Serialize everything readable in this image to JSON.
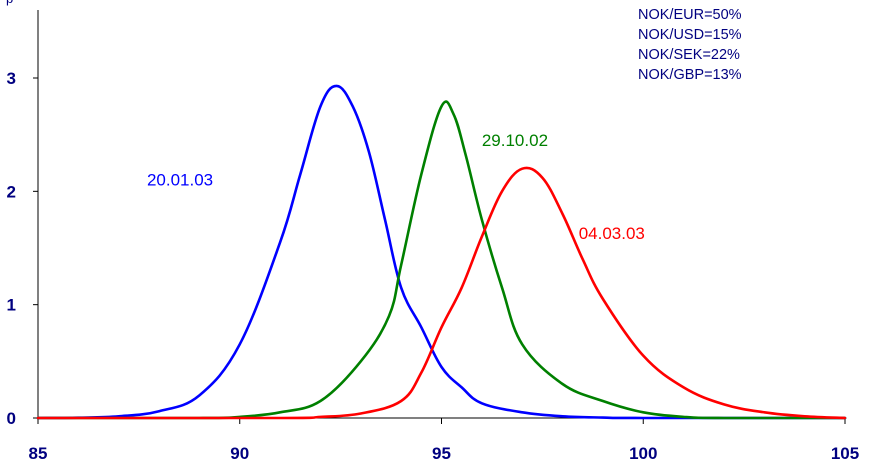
{
  "chart_data": {
    "type": "line",
    "title": "",
    "xlabel": "",
    "ylabel": "",
    "xlim": [
      85,
      105
    ],
    "ylim": [
      0,
      3.4
    ],
    "x_ticks": [
      {
        "value": 85,
        "label": "85"
      },
      {
        "value": 90,
        "label": "90"
      },
      {
        "value": 95,
        "label": "95"
      },
      {
        "value": 100,
        "label": "100"
      },
      {
        "value": 105,
        "label": "105"
      }
    ],
    "y_ticks": [
      {
        "value": 0,
        "label": "0"
      },
      {
        "value": 1,
        "label": "1"
      },
      {
        "value": 2,
        "label": "2"
      },
      {
        "value": 3,
        "label": "3"
      }
    ],
    "grid": false,
    "corner_text": "p",
    "weights_note": [
      "NOK/EUR=50%",
      "NOK/USD=15%",
      "NOK/SEK=22%",
      "NOK/GBP=13%"
    ],
    "series": [
      {
        "name": "20.01.03",
        "color": "#0000ff",
        "label_pos": [
          87.7,
          2.05
        ],
        "points": [
          [
            85,
            0
          ],
          [
            86,
            0.003
          ],
          [
            87,
            0.015
          ],
          [
            88,
            0.06
          ],
          [
            89,
            0.2
          ],
          [
            90,
            0.65
          ],
          [
            91,
            1.55
          ],
          [
            91.5,
            2.15
          ],
          [
            92,
            2.75
          ],
          [
            92.4,
            2.93
          ],
          [
            92.8,
            2.75
          ],
          [
            93.2,
            2.35
          ],
          [
            93.6,
            1.75
          ],
          [
            94,
            1.15
          ],
          [
            94.5,
            0.8
          ],
          [
            95,
            0.45
          ],
          [
            95.5,
            0.27
          ],
          [
            96,
            0.13
          ],
          [
            97,
            0.05
          ],
          [
            98,
            0.015
          ],
          [
            99,
            0.004
          ],
          [
            100,
            0
          ],
          [
            105,
            0
          ]
        ]
      },
      {
        "name": "29.10.02",
        "color": "#008000",
        "label_pos": [
          96.0,
          2.4
        ],
        "points": [
          [
            85,
            0
          ],
          [
            89,
            0
          ],
          [
            90,
            0.01
          ],
          [
            91,
            0.05
          ],
          [
            92,
            0.15
          ],
          [
            93,
            0.5
          ],
          [
            93.7,
            0.9
          ],
          [
            94,
            1.35
          ],
          [
            94.5,
            2.15
          ],
          [
            95,
            2.75
          ],
          [
            95.3,
            2.68
          ],
          [
            95.6,
            2.32
          ],
          [
            96,
            1.75
          ],
          [
            96.5,
            1.15
          ],
          [
            97,
            0.65
          ],
          [
            98,
            0.3
          ],
          [
            99,
            0.15
          ],
          [
            100,
            0.05
          ],
          [
            101,
            0.01
          ],
          [
            102,
            0
          ],
          [
            105,
            0
          ]
        ]
      },
      {
        "name": "04.03.03",
        "color": "#ff0000",
        "label_pos": [
          98.4,
          1.58
        ],
        "points": [
          [
            85,
            0
          ],
          [
            91,
            0
          ],
          [
            92,
            0.01
          ],
          [
            93,
            0.04
          ],
          [
            94,
            0.15
          ],
          [
            94.5,
            0.4
          ],
          [
            95,
            0.8
          ],
          [
            95.5,
            1.15
          ],
          [
            96,
            1.6
          ],
          [
            96.5,
            2.0
          ],
          [
            97,
            2.2
          ],
          [
            97.5,
            2.12
          ],
          [
            98,
            1.8
          ],
          [
            98.5,
            1.4
          ],
          [
            99,
            1.05
          ],
          [
            100,
            0.55
          ],
          [
            101,
            0.27
          ],
          [
            102,
            0.12
          ],
          [
            103,
            0.05
          ],
          [
            104,
            0.015
          ],
          [
            105,
            0
          ]
        ]
      }
    ]
  }
}
